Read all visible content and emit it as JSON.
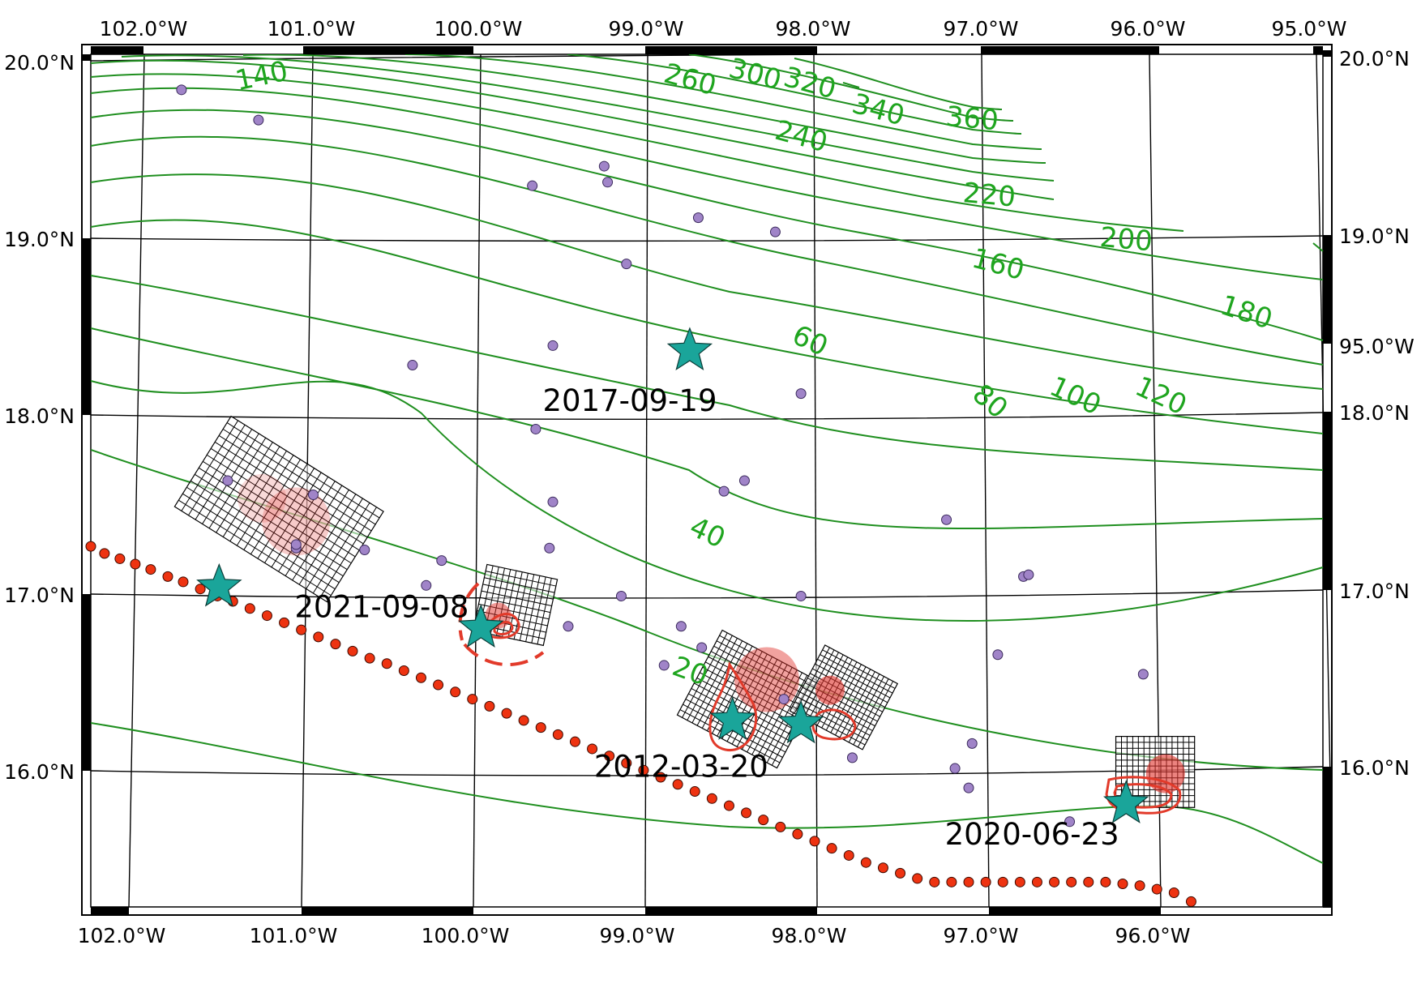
{
  "map": {
    "lon_range": [
      -102.2,
      -95.0
    ],
    "lat_range": [
      15.2,
      20.0
    ],
    "colors": {
      "contour": "#1f8f1f",
      "contour_label": "#1fa51f",
      "epicenter_star": "#1aa59a",
      "aftershock": "#a084c8",
      "trench_dot": "#ee3311",
      "slip_contour": "#e23a2a",
      "grid_line": "#000000"
    }
  },
  "axes": {
    "top_lon_labels": [
      "102.0°W",
      "101.0°W",
      "100.0°W",
      "99.0°W",
      "98.0°W",
      "97.0°W",
      "96.0°W",
      "95.0°W"
    ],
    "bottom_lon_labels": [
      "102.0°W",
      "101.0°W",
      "100.0°W",
      "99.0°W",
      "98.0°W",
      "97.0°W",
      "96.0°W"
    ],
    "left_lat_labels": [
      "20.0°N",
      "19.0°N",
      "18.0°N",
      "17.0°N",
      "16.0°N"
    ],
    "right_lat_labels": [
      "20.0°N",
      "19.0°N",
      "95.0°W",
      "18.0°N",
      "17.0°N",
      "16.0°N"
    ]
  },
  "contour_labels": [
    {
      "text": "140",
      "lon": -101.2,
      "lat": 19.87,
      "rot": -12
    },
    {
      "text": "260",
      "lon": -98.7,
      "lat": 19.85,
      "rot": 15
    },
    {
      "text": "300",
      "lon": -98.32,
      "lat": 19.88,
      "rot": 15
    },
    {
      "text": "320",
      "lon": -98.0,
      "lat": 19.83,
      "rot": 15
    },
    {
      "text": "340",
      "lon": -97.6,
      "lat": 19.68,
      "rot": 15
    },
    {
      "text": "360",
      "lon": -97.05,
      "lat": 19.63,
      "rot": 5
    },
    {
      "text": "240",
      "lon": -98.05,
      "lat": 19.53,
      "rot": 15
    },
    {
      "text": "220",
      "lon": -96.95,
      "lat": 19.2,
      "rot": 5
    },
    {
      "text": "200",
      "lon": -96.15,
      "lat": 18.95,
      "rot": 5
    },
    {
      "text": "160",
      "lon": -96.9,
      "lat": 18.81,
      "rot": 15
    },
    {
      "text": "180",
      "lon": -95.45,
      "lat": 18.54,
      "rot": 18
    },
    {
      "text": "60",
      "lon": -98.0,
      "lat": 18.38,
      "rot": 25
    },
    {
      "text": "80",
      "lon": -96.95,
      "lat": 18.04,
      "rot": 40
    },
    {
      "text": "100",
      "lon": -96.45,
      "lat": 18.07,
      "rot": 25
    },
    {
      "text": "120",
      "lon": -95.95,
      "lat": 18.07,
      "rot": 25
    },
    {
      "text": "40",
      "lon": -98.6,
      "lat": 17.3,
      "rot": 25
    },
    {
      "text": "20",
      "lon": -98.7,
      "lat": 16.52,
      "rot": 20
    }
  ],
  "events": [
    {
      "date": "2017-09-19",
      "lon": -98.7,
      "lat": 18.33,
      "label_lon": -99.05,
      "label_lat": 18.04
    },
    {
      "date": "2021-09-08",
      "lon": -101.45,
      "lat": 17.0,
      "label_lon": -100.5,
      "label_lat": 16.88
    },
    {
      "date": "2012-03-20",
      "lon": -98.45,
      "lat": 16.25,
      "label_lon": -98.75,
      "label_lat": 15.98
    },
    {
      "date": "2020-06-23",
      "lon": -96.15,
      "lat": 15.78,
      "label_lon": -96.7,
      "label_lat": 15.6
    }
  ],
  "epicenters": [
    {
      "lon": -98.7,
      "lat": 18.33
    },
    {
      "lon": -101.45,
      "lat": 17.0
    },
    {
      "lon": -99.92,
      "lat": 16.77
    },
    {
      "lon": -98.45,
      "lat": 16.25
    },
    {
      "lon": -98.05,
      "lat": 16.23
    },
    {
      "lon": -96.15,
      "lat": 15.78
    }
  ],
  "aftershocks": [
    [
      -101.67,
      19.8
    ],
    [
      -101.22,
      19.63
    ],
    [
      -99.62,
      19.26
    ],
    [
      -99.2,
      19.37
    ],
    [
      -99.18,
      19.28
    ],
    [
      -98.65,
      19.08
    ],
    [
      -98.2,
      19.0
    ],
    [
      -99.07,
      18.82
    ],
    [
      -99.5,
      18.36
    ],
    [
      -100.32,
      18.25
    ],
    [
      -98.05,
      18.09
    ],
    [
      -99.6,
      17.89
    ],
    [
      -98.5,
      17.54
    ],
    [
      -98.38,
      17.6
    ],
    [
      -101.4,
      17.6
    ],
    [
      -100.9,
      17.52
    ],
    [
      -101.0,
      17.22
    ],
    [
      -101.0,
      17.24
    ],
    [
      -100.6,
      17.21
    ],
    [
      -100.15,
      17.15
    ],
    [
      -100.24,
      17.01
    ],
    [
      -99.5,
      17.48
    ],
    [
      -99.52,
      17.22
    ],
    [
      -99.1,
      16.95
    ],
    [
      -99.41,
      16.78
    ],
    [
      -98.75,
      16.78
    ],
    [
      -98.63,
      16.66
    ],
    [
      -98.85,
      16.56
    ],
    [
      -98.05,
      16.95
    ],
    [
      -98.15,
      16.37
    ],
    [
      -97.2,
      17.38
    ],
    [
      -96.75,
      17.06
    ],
    [
      -96.72,
      17.07
    ],
    [
      -96.9,
      16.62
    ],
    [
      -97.75,
      16.04
    ],
    [
      -97.05,
      16.12
    ],
    [
      -97.07,
      15.87
    ],
    [
      -97.15,
      15.98
    ],
    [
      -96.48,
      15.68
    ],
    [
      -96.05,
      16.51
    ]
  ],
  "trench": [
    [
      -102.2,
      17.23
    ],
    [
      -102.12,
      17.19
    ],
    [
      -102.03,
      17.16
    ],
    [
      -101.94,
      17.13
    ],
    [
      -101.85,
      17.1
    ],
    [
      -101.75,
      17.06
    ],
    [
      -101.66,
      17.03
    ],
    [
      -101.56,
      16.99
    ],
    [
      -101.46,
      16.95
    ],
    [
      -101.37,
      16.92
    ],
    [
      -101.27,
      16.88
    ],
    [
      -101.17,
      16.84
    ],
    [
      -101.07,
      16.8
    ],
    [
      -100.97,
      16.76
    ],
    [
      -100.87,
      16.72
    ],
    [
      -100.77,
      16.68
    ],
    [
      -100.67,
      16.64
    ],
    [
      -100.57,
      16.6
    ],
    [
      -100.47,
      16.57
    ],
    [
      -100.37,
      16.53
    ],
    [
      -100.27,
      16.49
    ],
    [
      -100.17,
      16.45
    ],
    [
      -100.07,
      16.41
    ],
    [
      -99.97,
      16.37
    ],
    [
      -99.87,
      16.33
    ],
    [
      -99.77,
      16.29
    ],
    [
      -99.67,
      16.25
    ],
    [
      -99.57,
      16.21
    ],
    [
      -99.47,
      16.17
    ],
    [
      -99.37,
      16.13
    ],
    [
      -99.27,
      16.09
    ],
    [
      -99.17,
      16.05
    ],
    [
      -99.07,
      16.01
    ],
    [
      -98.97,
      15.97
    ],
    [
      -98.87,
      15.93
    ],
    [
      -98.77,
      15.89
    ],
    [
      -98.67,
      15.85
    ],
    [
      -98.57,
      15.81
    ],
    [
      -98.47,
      15.77
    ],
    [
      -98.37,
      15.73
    ],
    [
      -98.27,
      15.69
    ],
    [
      -98.17,
      15.65
    ],
    [
      -98.07,
      15.61
    ],
    [
      -97.97,
      15.57
    ],
    [
      -97.87,
      15.53
    ],
    [
      -97.77,
      15.49
    ],
    [
      -97.67,
      15.45
    ],
    [
      -97.57,
      15.42
    ],
    [
      -97.47,
      15.39
    ],
    [
      -97.37,
      15.36
    ],
    [
      -97.27,
      15.34
    ],
    [
      -97.17,
      15.34
    ],
    [
      -97.07,
      15.34
    ],
    [
      -96.97,
      15.34
    ],
    [
      -96.87,
      15.34
    ],
    [
      -96.77,
      15.34
    ],
    [
      -96.67,
      15.34
    ],
    [
      -96.57,
      15.34
    ],
    [
      -96.47,
      15.34
    ],
    [
      -96.37,
      15.34
    ],
    [
      -96.27,
      15.34
    ],
    [
      -96.17,
      15.33
    ],
    [
      -96.07,
      15.32
    ],
    [
      -95.97,
      15.3
    ],
    [
      -95.87,
      15.28
    ],
    [
      -95.77,
      15.23
    ]
  ],
  "fault_grids": [
    {
      "center_lon": -101.1,
      "center_lat": 17.44,
      "length_deg": 1.05,
      "width_deg": 0.6,
      "angle": 32,
      "nx": 22,
      "ny": 14
    },
    {
      "center_lon": -99.72,
      "center_lat": 16.9,
      "length_deg": 0.42,
      "width_deg": 0.38,
      "angle": 12,
      "nx": 12,
      "ny": 10
    },
    {
      "center_lon": -98.35,
      "center_lat": 16.37,
      "length_deg": 0.66,
      "width_deg": 0.54,
      "angle": 28,
      "nx": 20,
      "ny": 16
    },
    {
      "center_lon": -97.8,
      "center_lat": 16.38,
      "length_deg": 0.48,
      "width_deg": 0.42,
      "angle": 28,
      "nx": 16,
      "ny": 14
    },
    {
      "center_lon": -95.98,
      "center_lat": 15.96,
      "length_deg": 0.46,
      "width_deg": 0.4,
      "angle": 0,
      "nx": 14,
      "ny": 12
    }
  ],
  "slip_patches": [
    {
      "lon": -101.0,
      "lat": 17.37,
      "r": 42,
      "alpha": 0.25
    },
    {
      "lon": -101.2,
      "lat": 17.5,
      "r": 30,
      "alpha": 0.18
    },
    {
      "lon": -99.82,
      "lat": 16.84,
      "r": 16,
      "alpha": 0.5
    },
    {
      "lon": -98.25,
      "lat": 16.48,
      "r": 40,
      "alpha": 0.45
    },
    {
      "lon": -97.88,
      "lat": 16.42,
      "r": 18,
      "alpha": 0.6
    },
    {
      "lon": -95.92,
      "lat": 15.95,
      "r": 24,
      "alpha": 0.6
    }
  ]
}
